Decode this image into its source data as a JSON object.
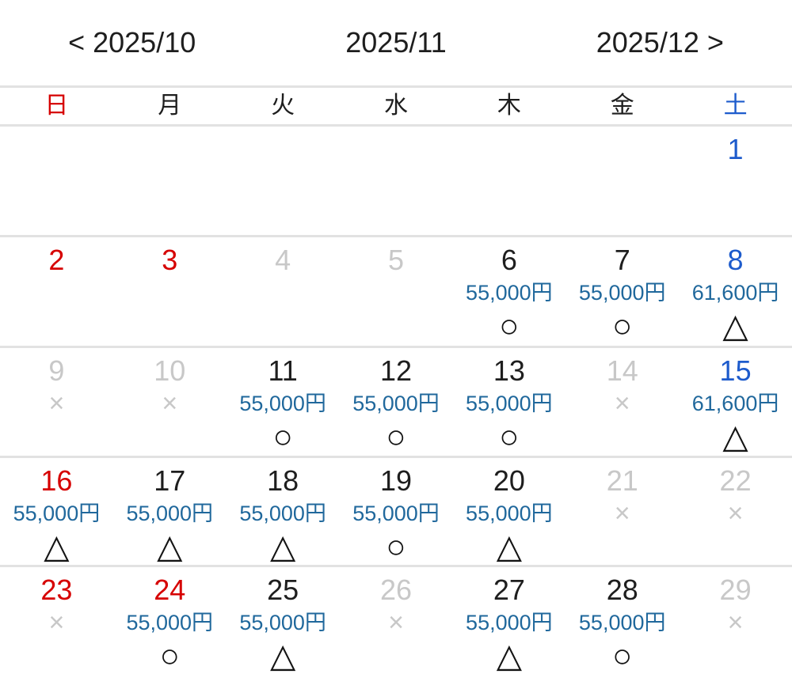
{
  "header": {
    "prev_label": "< 2025/10",
    "current_label": "2025/11",
    "next_label": "2025/12 >"
  },
  "weekdays": [
    {
      "label": "日",
      "color": "red"
    },
    {
      "label": "月",
      "color": "black"
    },
    {
      "label": "火",
      "color": "black"
    },
    {
      "label": "水",
      "color": "black"
    },
    {
      "label": "木",
      "color": "black"
    },
    {
      "label": "金",
      "color": "black"
    },
    {
      "label": "土",
      "color": "blue"
    }
  ],
  "symbols": {
    "circle": "○",
    "triangle": "△",
    "cross": "×"
  },
  "colors": {
    "holiday_red": "#d60000",
    "saturday_blue": "#1d5bcc",
    "price_blue": "#20689c",
    "disabled_gray": "#c8c8c8",
    "text_black": "#1e1e1e",
    "separator_gray": "#e2e2e2"
  },
  "weeks": [
    [
      {
        "day": "",
        "color": "black",
        "price": "",
        "mark": ""
      },
      {
        "day": "",
        "color": "black",
        "price": "",
        "mark": ""
      },
      {
        "day": "",
        "color": "black",
        "price": "",
        "mark": ""
      },
      {
        "day": "",
        "color": "black",
        "price": "",
        "mark": ""
      },
      {
        "day": "",
        "color": "black",
        "price": "",
        "mark": ""
      },
      {
        "day": "",
        "color": "black",
        "price": "",
        "mark": ""
      },
      {
        "day": "1",
        "color": "blue",
        "price": "",
        "mark": ""
      }
    ],
    [
      {
        "day": "2",
        "color": "red",
        "price": "",
        "mark": ""
      },
      {
        "day": "3",
        "color": "red",
        "price": "",
        "mark": ""
      },
      {
        "day": "4",
        "color": "gray",
        "price": "",
        "mark": ""
      },
      {
        "day": "5",
        "color": "gray",
        "price": "",
        "mark": ""
      },
      {
        "day": "6",
        "color": "black",
        "price": "55,000円",
        "mark": "circle"
      },
      {
        "day": "7",
        "color": "black",
        "price": "55,000円",
        "mark": "circle"
      },
      {
        "day": "8",
        "color": "blue",
        "price": "61,600円",
        "mark": "triangle"
      }
    ],
    [
      {
        "day": "9",
        "color": "gray",
        "price": "",
        "mark": "cross"
      },
      {
        "day": "10",
        "color": "gray",
        "price": "",
        "mark": "cross"
      },
      {
        "day": "11",
        "color": "black",
        "price": "55,000円",
        "mark": "circle"
      },
      {
        "day": "12",
        "color": "black",
        "price": "55,000円",
        "mark": "circle"
      },
      {
        "day": "13",
        "color": "black",
        "price": "55,000円",
        "mark": "circle"
      },
      {
        "day": "14",
        "color": "gray",
        "price": "",
        "mark": "cross"
      },
      {
        "day": "15",
        "color": "blue",
        "price": "61,600円",
        "mark": "triangle"
      }
    ],
    [
      {
        "day": "16",
        "color": "red",
        "price": "55,000円",
        "mark": "triangle"
      },
      {
        "day": "17",
        "color": "black",
        "price": "55,000円",
        "mark": "triangle"
      },
      {
        "day": "18",
        "color": "black",
        "price": "55,000円",
        "mark": "triangle"
      },
      {
        "day": "19",
        "color": "black",
        "price": "55,000円",
        "mark": "circle"
      },
      {
        "day": "20",
        "color": "black",
        "price": "55,000円",
        "mark": "triangle"
      },
      {
        "day": "21",
        "color": "gray",
        "price": "",
        "mark": "cross"
      },
      {
        "day": "22",
        "color": "gray",
        "price": "",
        "mark": "cross"
      }
    ],
    [
      {
        "day": "23",
        "color": "red",
        "price": "",
        "mark": "cross"
      },
      {
        "day": "24",
        "color": "red",
        "price": "55,000円",
        "mark": "circle"
      },
      {
        "day": "25",
        "color": "black",
        "price": "55,000円",
        "mark": "triangle"
      },
      {
        "day": "26",
        "color": "gray",
        "price": "",
        "mark": "cross"
      },
      {
        "day": "27",
        "color": "black",
        "price": "55,000円",
        "mark": "triangle"
      },
      {
        "day": "28",
        "color": "black",
        "price": "55,000円",
        "mark": "circle"
      },
      {
        "day": "29",
        "color": "gray",
        "price": "",
        "mark": "cross"
      }
    ]
  ]
}
